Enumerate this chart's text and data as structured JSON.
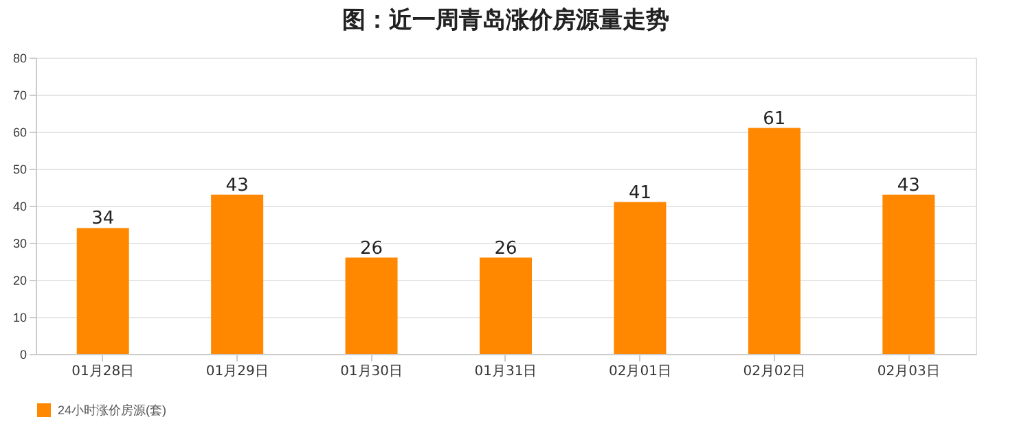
{
  "chart_data": {
    "type": "bar",
    "title": "图：近一周青岛涨价房源量走势",
    "categories": [
      "01月28日",
      "01月29日",
      "01月30日",
      "01月31日",
      "02月01日",
      "02月02日",
      "02月03日"
    ],
    "series": [
      {
        "name": "24小时涨价房源(套)",
        "color": "#ff8800",
        "values": [
          34,
          43,
          26,
          26,
          41,
          61,
          43
        ]
      }
    ],
    "ylim": [
      0,
      80
    ],
    "yticks": [
      0,
      10,
      20,
      30,
      40,
      50,
      60,
      70,
      80
    ],
    "grid": "y",
    "legend": "bottom",
    "data_labels": true
  }
}
